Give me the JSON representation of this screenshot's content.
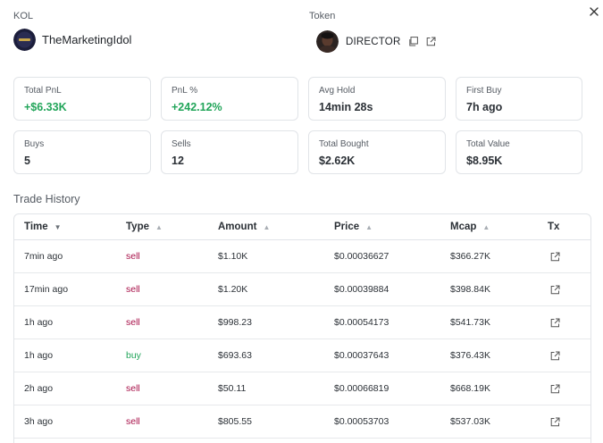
{
  "kol": {
    "label": "KOL",
    "name": "TheMarketingIdol"
  },
  "token": {
    "label": "Token",
    "name": "DIRECTOR"
  },
  "stats": [
    {
      "label": "Total PnL",
      "value": "+$6.33K",
      "positive": true
    },
    {
      "label": "PnL %",
      "value": "+242.12%",
      "positive": true
    },
    {
      "label": "Avg Hold",
      "value": "14min 28s",
      "positive": false
    },
    {
      "label": "First Buy",
      "value": "7h ago",
      "positive": false
    },
    {
      "label": "Buys",
      "value": "5",
      "positive": false
    },
    {
      "label": "Sells",
      "value": "12",
      "positive": false
    },
    {
      "label": "Total Bought",
      "value": "$2.62K",
      "positive": false
    },
    {
      "label": "Total Value",
      "value": "$8.95K",
      "positive": false
    }
  ],
  "history": {
    "title": "Trade History",
    "columns": {
      "time": "Time",
      "type": "Type",
      "amount": "Amount",
      "price": "Price",
      "mcap": "Mcap",
      "tx": "Tx"
    },
    "rows": [
      {
        "time": "7min ago",
        "type": "sell",
        "amount": "$1.10K",
        "price": "$0.00036627",
        "mcap": "$366.27K"
      },
      {
        "time": "17min ago",
        "type": "sell",
        "amount": "$1.20K",
        "price": "$0.00039884",
        "mcap": "$398.84K"
      },
      {
        "time": "1h ago",
        "type": "sell",
        "amount": "$998.23",
        "price": "$0.00054173",
        "mcap": "$541.73K"
      },
      {
        "time": "1h ago",
        "type": "buy",
        "amount": "$693.63",
        "price": "$0.00037643",
        "mcap": "$376.43K"
      },
      {
        "time": "2h ago",
        "type": "sell",
        "amount": "$50.11",
        "price": "$0.00066819",
        "mcap": "$668.19K"
      },
      {
        "time": "3h ago",
        "type": "sell",
        "amount": "$805.55",
        "price": "$0.00053703",
        "mcap": "$537.03K"
      }
    ]
  },
  "colors": {
    "positive": "#22a55a",
    "sell": "#a8124a",
    "border": "#e1e4e8"
  },
  "icons": {
    "close": "close-icon",
    "copy": "copy-icon",
    "external": "external-link-icon"
  }
}
